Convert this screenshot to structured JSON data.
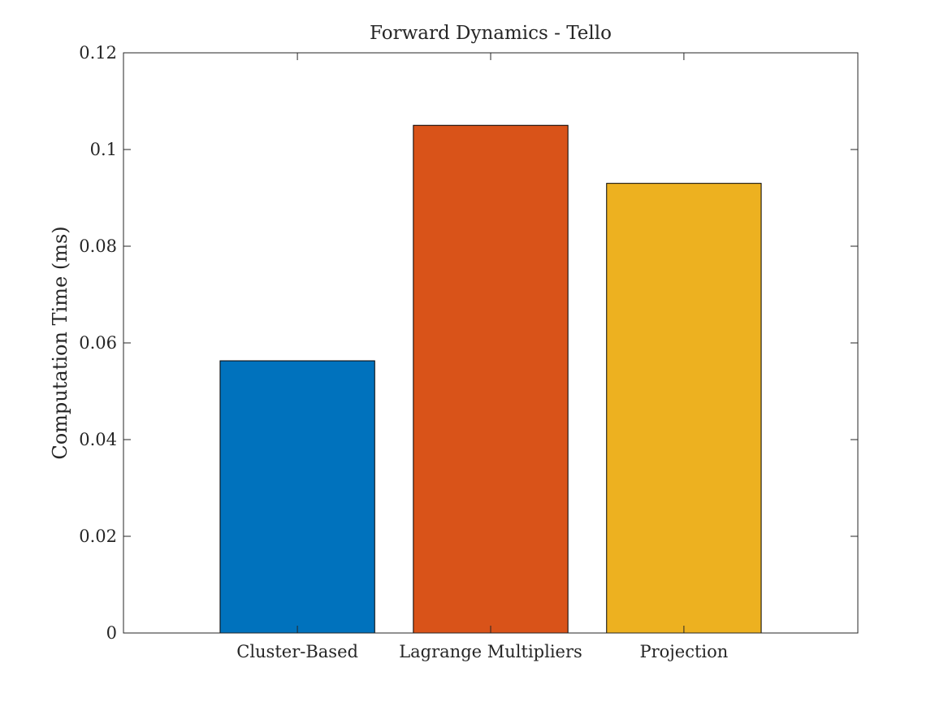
{
  "chart_data": {
    "type": "bar",
    "title": "Forward Dynamics - Tello",
    "xlabel": "",
    "ylabel": "Computation Time (ms)",
    "categories": [
      "Cluster-Based",
      "Lagrange Multipliers",
      "Projection"
    ],
    "values": [
      0.0563,
      0.105,
      0.093
    ],
    "colors": [
      "#0072BD",
      "#D95319",
      "#EDB120"
    ],
    "ylim": [
      0,
      0.12
    ],
    "yticks": [
      0,
      0.02,
      0.04,
      0.06,
      0.08,
      0.1,
      0.12
    ],
    "ytick_labels": [
      "0",
      "0.02",
      "0.04",
      "0.06",
      "0.08",
      "0.1",
      "0.12"
    ],
    "grid": false,
    "legend": "none"
  }
}
